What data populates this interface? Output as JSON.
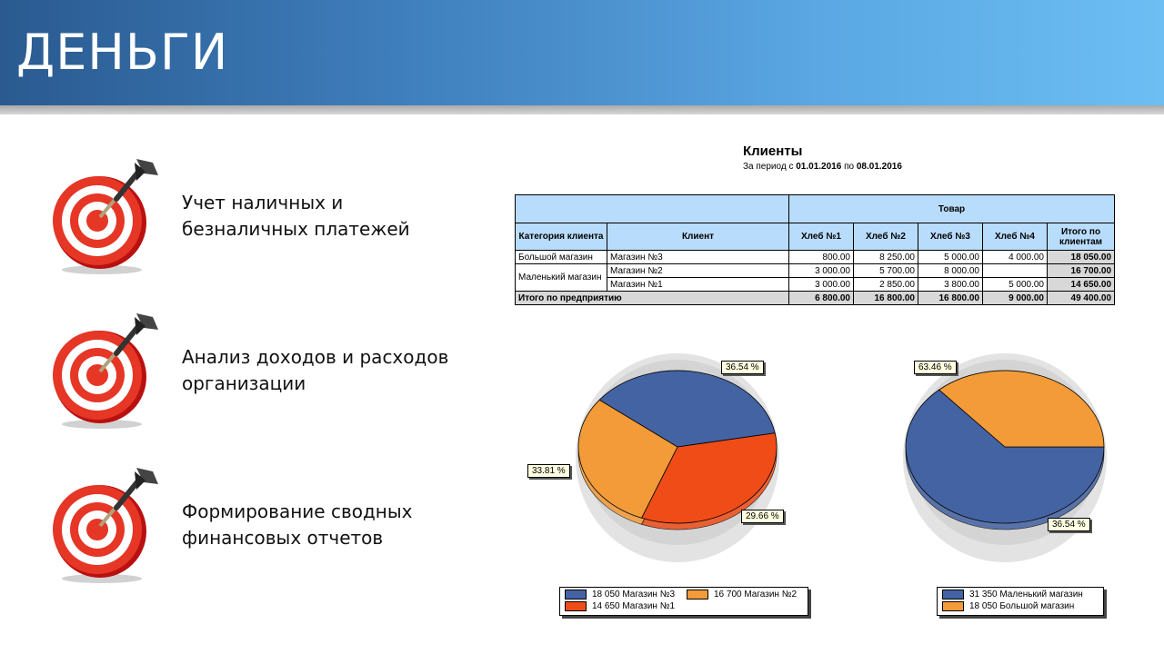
{
  "header": {
    "title": "ДЕНЬГИ"
  },
  "features": [
    {
      "line1": "Учет наличных и",
      "line2": "безналичных платежей"
    },
    {
      "line1": "Анализ доходов и расходов",
      "line2": "организации"
    },
    {
      "line1": "Формирование сводных",
      "line2": "финансовых отчетов"
    }
  ],
  "report": {
    "title": "Клиенты",
    "period_prefix": "За период с",
    "period_from": "01.01.2016",
    "period_mid": "по",
    "period_to": "08.01.2016",
    "headers": {
      "category": "Категория клиента",
      "client": "Клиент",
      "product": "Товар",
      "cols": [
        "Хлеб №1",
        "Хлеб №2",
        "Хлеб №3",
        "Хлеб №4"
      ],
      "total": "Итого по клиентам"
    },
    "rows": [
      {
        "category": "Большой магазин",
        "client": "Магазин №3",
        "v": [
          "800.00",
          "8 250.00",
          "5 000.00",
          "4 000.00"
        ],
        "total": "18 050.00"
      },
      {
        "category": "Маленький магазин",
        "client": "Магазин №2",
        "v": [
          "3 000.00",
          "5 700.00",
          "8 000.00",
          ""
        ],
        "total": "16 700.00"
      },
      {
        "category": "",
        "client": "Магазин №1",
        "v": [
          "3 000.00",
          "2 850.00",
          "3 800.00",
          "5 000.00"
        ],
        "total": "14 650.00"
      }
    ],
    "grand_total": {
      "label": "Итого по предприятию",
      "v": [
        "6 800.00",
        "16 800.00",
        "16 800.00",
        "9 000.00"
      ],
      "total": "49 400.00"
    }
  },
  "colors": {
    "blue": "#4463a2",
    "orange": "#f29b38",
    "red": "#ef4c17"
  },
  "chart_data": [
    {
      "type": "pie",
      "categories": [
        "Магазин №3",
        "Магазин №2",
        "Магазин №1"
      ],
      "values": [
        18050,
        16700,
        14650
      ],
      "slice_labels": [
        "36.54 %",
        "33.81 %",
        "29.66 %"
      ],
      "legend": [
        "18 050 Магазин №3",
        "16 700 Магазин №2",
        "14 650 Магазин №1"
      ]
    },
    {
      "type": "pie",
      "categories": [
        "Маленький магазин",
        "Большой магазин"
      ],
      "values": [
        31350,
        18050
      ],
      "slice_labels": [
        "63.46 %",
        "36.54 %"
      ],
      "legend": [
        "31 350 Маленький магазин",
        "18 050 Большой магазин"
      ]
    }
  ]
}
